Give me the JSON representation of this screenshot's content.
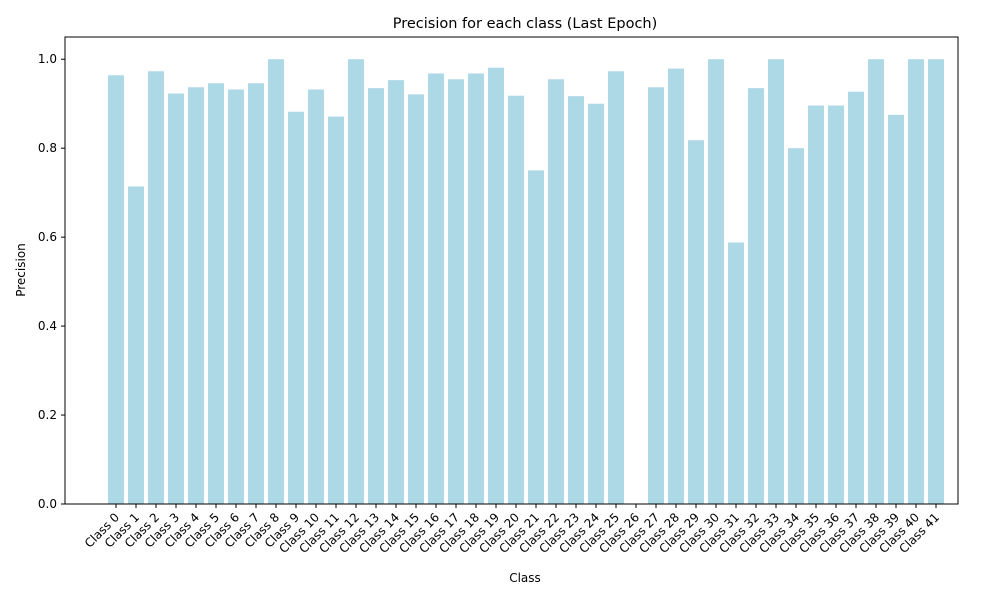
{
  "chart_data": {
    "type": "bar",
    "title": "Precision for each class (Last Epoch)",
    "xlabel": "Class",
    "ylabel": "Precision",
    "ylim": [
      0,
      1.05
    ],
    "yticks": [
      "0.0",
      "0.2",
      "0.4",
      "0.6",
      "0.8",
      "1.0"
    ],
    "categories": [
      "Class 0",
      "Class 1",
      "Class 2",
      "Class 3",
      "Class 4",
      "Class 5",
      "Class 6",
      "Class 7",
      "Class 8",
      "Class 9",
      "Class 10",
      "Class 11",
      "Class 12",
      "Class 13",
      "Class 14",
      "Class 15",
      "Class 16",
      "Class 17",
      "Class 18",
      "Class 19",
      "Class 20",
      "Class 21",
      "Class 22",
      "Class 23",
      "Class 24",
      "Class 25",
      "Class 26",
      "Class 27",
      "Class 28",
      "Class 29",
      "Class 30",
      "Class 31",
      "Class 32",
      "Class 33",
      "Class 34",
      "Class 35",
      "Class 36",
      "Class 37",
      "Class 38",
      "Class 39",
      "Class 40",
      "Class 41"
    ],
    "values": [
      0.964,
      0.714,
      0.973,
      0.923,
      0.937,
      0.946,
      0.932,
      0.946,
      1.0,
      0.882,
      0.932,
      0.871,
      1.0,
      0.935,
      0.953,
      0.921,
      0.968,
      0.955,
      0.968,
      0.981,
      0.918,
      0.75,
      0.955,
      0.917,
      0.9,
      0.973,
      0.0,
      0.937,
      0.979,
      0.818,
      1.0,
      0.588,
      0.935,
      1.0,
      0.8,
      0.896,
      0.896,
      0.927,
      1.0,
      0.875,
      1.0,
      1.0
    ],
    "bar_color": "#add8e6",
    "grid": false,
    "legend": "none"
  }
}
